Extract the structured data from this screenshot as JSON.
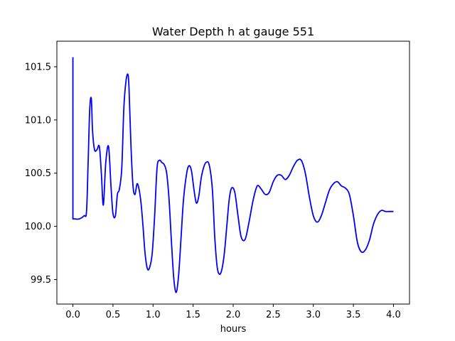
{
  "chart_data": {
    "type": "line",
    "title": "Water Depth h at gauge 551",
    "xlabel": "hours",
    "ylabel": "",
    "xlim": [
      -0.2,
      4.2
    ],
    "ylim": [
      99.27,
      101.74
    ],
    "xticks": [
      0.0,
      0.5,
      1.0,
      1.5,
      2.0,
      2.5,
      3.0,
      3.5,
      4.0
    ],
    "xtick_labels": [
      "0.0",
      "0.5",
      "1.0",
      "1.5",
      "2.0",
      "2.5",
      "3.0",
      "3.5",
      "4.0"
    ],
    "yticks": [
      99.5,
      100.0,
      100.5,
      101.0,
      101.5
    ],
    "ytick_labels": [
      "99.5",
      "100.0",
      "100.5",
      "101.0",
      "101.5"
    ],
    "grid": false,
    "series": [
      {
        "color": "#0000ff",
        "x": [
          0.0,
          0.0,
          0.02,
          0.08,
          0.14,
          0.17,
          0.19,
          0.21,
          0.23,
          0.245,
          0.27,
          0.3,
          0.33,
          0.355,
          0.38,
          0.41,
          0.445,
          0.475,
          0.5,
          0.53,
          0.555,
          0.58,
          0.61,
          0.635,
          0.66,
          0.685,
          0.7,
          0.725,
          0.75,
          0.775,
          0.8,
          0.825,
          0.85,
          0.875,
          0.9,
          0.93,
          0.96,
          0.99,
          1.02,
          1.05,
          1.08,
          1.11,
          1.14,
          1.17,
          1.2,
          1.23,
          1.26,
          1.29,
          1.32,
          1.35,
          1.38,
          1.42,
          1.45,
          1.48,
          1.51,
          1.54,
          1.57,
          1.6,
          1.63,
          1.66,
          1.7,
          1.74,
          1.77,
          1.8,
          1.83,
          1.86,
          1.89,
          1.92,
          1.95,
          1.98,
          2.02,
          2.06,
          2.1,
          2.15,
          2.2,
          2.25,
          2.3,
          2.35,
          2.4,
          2.45,
          2.5,
          2.55,
          2.6,
          2.65,
          2.7,
          2.75,
          2.8,
          2.85,
          2.9,
          2.95,
          3.0,
          3.05,
          3.1,
          3.15,
          3.2,
          3.25,
          3.3,
          3.35,
          3.4,
          3.45,
          3.5,
          3.55,
          3.6,
          3.65,
          3.7,
          3.75,
          3.8,
          3.85,
          3.9,
          3.95,
          4.0
        ],
        "y": [
          101.59,
          100.07,
          100.07,
          100.07,
          100.1,
          100.14,
          100.6,
          101.1,
          101.2,
          100.9,
          100.72,
          100.72,
          100.75,
          100.5,
          100.2,
          100.6,
          100.75,
          100.38,
          100.12,
          100.1,
          100.3,
          100.35,
          100.55,
          101.1,
          101.35,
          101.43,
          101.3,
          100.75,
          100.38,
          100.3,
          100.4,
          100.35,
          100.22,
          100.0,
          99.75,
          99.6,
          99.62,
          99.75,
          100.1,
          100.55,
          100.62,
          100.6,
          100.58,
          100.5,
          100.25,
          99.85,
          99.5,
          99.38,
          99.55,
          99.9,
          100.25,
          100.5,
          100.57,
          100.52,
          100.35,
          100.22,
          100.28,
          100.45,
          100.55,
          100.6,
          100.58,
          100.35,
          99.9,
          99.62,
          99.55,
          99.6,
          99.75,
          100.0,
          100.25,
          100.36,
          100.32,
          100.1,
          99.9,
          99.88,
          100.05,
          100.25,
          100.38,
          100.35,
          100.3,
          100.32,
          100.42,
          100.48,
          100.48,
          100.44,
          100.48,
          100.56,
          100.62,
          100.62,
          100.5,
          100.28,
          100.1,
          100.04,
          100.1,
          100.22,
          100.34,
          100.4,
          100.42,
          100.38,
          100.36,
          100.3,
          100.1,
          99.85,
          99.76,
          99.78,
          99.87,
          100.02,
          100.11,
          100.15,
          100.14,
          100.14,
          100.14
        ]
      }
    ]
  }
}
